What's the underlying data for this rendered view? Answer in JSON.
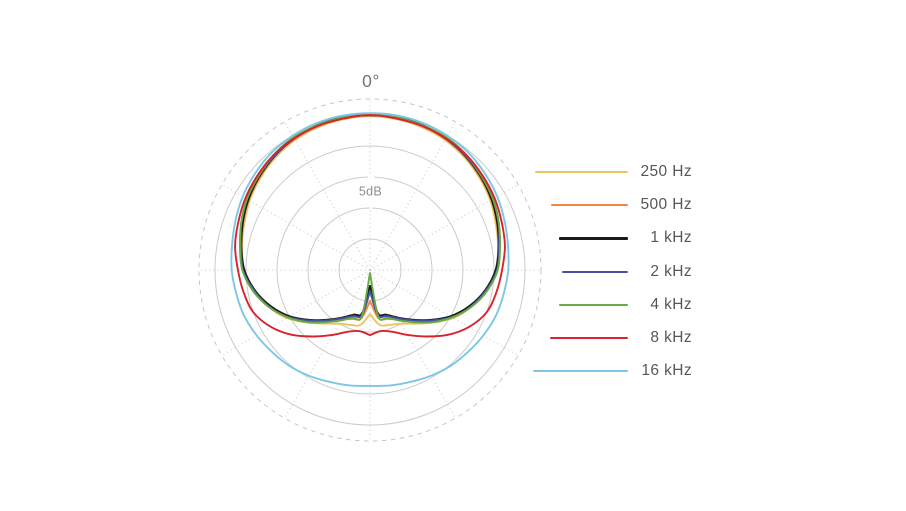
{
  "figure": {
    "front_axis_label": "0°",
    "radial_scale_label": "5dB"
  },
  "chart_data": {
    "type": "line",
    "subtype": "polar-pattern",
    "title": "",
    "front_axis_label": "0°",
    "radial_scale_label": "5dB",
    "angle_unit": "degrees",
    "zero_angle_position": "top",
    "db_per_ring": 5,
    "solid_rings": 5,
    "outer_boundary_style": "dashed",
    "grid_color": "#cbcbcb",
    "radial_line_step_deg": 30,
    "legend_position": "right",
    "symmetric_left_right": true,
    "angles_deg": [
      0,
      10,
      20,
      30,
      40,
      50,
      60,
      70,
      80,
      90,
      100,
      110,
      120,
      130,
      140,
      150,
      160,
      170,
      180
    ],
    "series": [
      {
        "name": "250 Hz",
        "color": "#ecc45f",
        "attenuation_db": [
          0.2,
          0.3,
          0.5,
          0.8,
          1.3,
          1.9,
          2.6,
          3.4,
          4.0,
          4.5,
          5.8,
          7.6,
          9.5,
          11.8,
          13.7,
          15.0,
          15.6,
          16.0,
          17.9
        ]
      },
      {
        "name": "500 Hz",
        "color": "#f2873d",
        "attenuation_db": [
          0.0,
          0.2,
          0.3,
          0.6,
          1.1,
          1.8,
          2.4,
          3.2,
          4.0,
          4.7,
          6.1,
          7.9,
          10.0,
          12.3,
          14.4,
          15.8,
          16.6,
          17.1,
          20.0
        ]
      },
      {
        "name": "1 kHz",
        "color": "#1a1a1a",
        "attenuation_db": [
          0.0,
          0.0,
          0.2,
          0.5,
          1.0,
          1.6,
          2.3,
          3.1,
          3.9,
          4.7,
          6.1,
          7.9,
          10.0,
          12.4,
          14.5,
          16.1,
          17.3,
          17.9,
          22.4
        ]
      },
      {
        "name": "2 kHz",
        "color": "#45519e",
        "attenuation_db": [
          -0.2,
          0.0,
          0.2,
          0.5,
          1.0,
          1.5,
          2.1,
          2.9,
          3.9,
          4.5,
          6.0,
          7.7,
          9.8,
          12.3,
          14.4,
          16.0,
          17.1,
          17.6,
          21.6
        ]
      },
      {
        "name": "4 kHz",
        "color": "#68ab45",
        "attenuation_db": [
          -0.2,
          0.0,
          0.2,
          0.3,
          0.8,
          1.5,
          2.1,
          2.9,
          3.7,
          4.4,
          5.8,
          7.6,
          9.7,
          11.9,
          14.0,
          15.6,
          16.8,
          17.4,
          24.5
        ]
      },
      {
        "name": "8 kHz",
        "color": "#d8232e",
        "attenuation_db": [
          0.0,
          0.2,
          0.3,
          0.5,
          0.8,
          1.3,
          1.8,
          2.4,
          2.9,
          3.7,
          4.3,
          5.0,
          6.6,
          8.7,
          11.0,
          12.9,
          14.4,
          15.0,
          14.5
        ]
      },
      {
        "name": "16 kHz",
        "color": "#7cc7e5",
        "attenuation_db": [
          -0.3,
          -0.3,
          -0.2,
          0.0,
          0.3,
          0.8,
          1.3,
          1.9,
          2.4,
          2.7,
          3.1,
          3.4,
          3.9,
          4.4,
          4.8,
          5.3,
          5.8,
          6.1,
          6.3
        ]
      }
    ]
  }
}
